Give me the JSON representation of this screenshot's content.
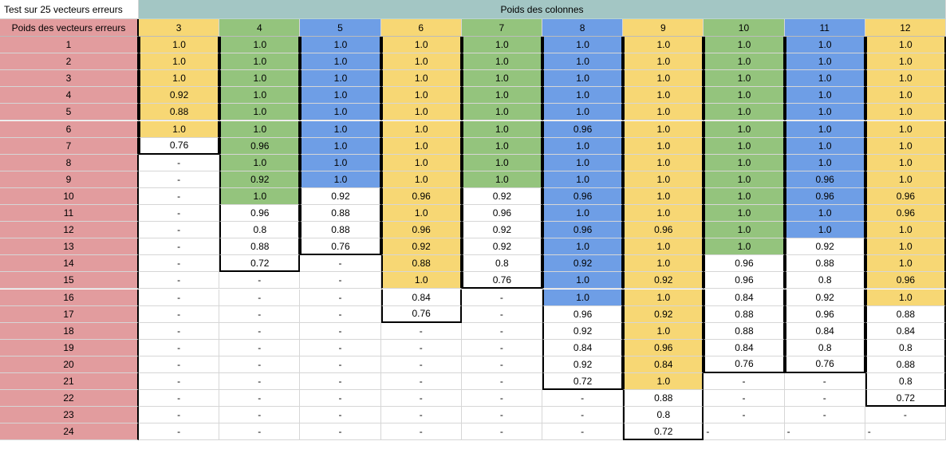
{
  "sheet": {
    "title": "Test sur 25 vecteurs erreurs",
    "column_group_label": "Poids des colonnes",
    "row_header_label": "Poids des vecteurs erreurs",
    "colors": {
      "yellow": "#f7d774",
      "green": "#94c47d",
      "blue": "#6e9ee6",
      "rowlabel": "#e29c9e",
      "band": "#a3c6c4"
    },
    "columns": [
      {
        "label": "3",
        "color": "yellow",
        "colored_rows": 6,
        "box_rows": 7,
        "values": [
          "1.0",
          "1.0",
          "1.0",
          "0.92",
          "0.88",
          "1.0",
          "0.76",
          "-",
          "-",
          "-",
          "-",
          "-",
          "-",
          "-",
          "-",
          "-",
          "-",
          "-",
          "-",
          "-",
          "-",
          "-",
          "-",
          "-"
        ]
      },
      {
        "label": "4",
        "color": "green",
        "colored_rows": 10,
        "box_rows": 14,
        "values": [
          "1.0",
          "1.0",
          "1.0",
          "1.0",
          "1.0",
          "1.0",
          "0.96",
          "1.0",
          "0.92",
          "1.0",
          "0.96",
          "0.8",
          "0.88",
          "0.72",
          "-",
          "-",
          "-",
          "-",
          "-",
          "-",
          "-",
          "-",
          "-",
          "-"
        ]
      },
      {
        "label": "5",
        "color": "blue",
        "colored_rows": 9,
        "box_rows": 13,
        "values": [
          "1.0",
          "1.0",
          "1.0",
          "1.0",
          "1.0",
          "1.0",
          "1.0",
          "1.0",
          "1.0",
          "0.92",
          "0.88",
          "0.88",
          "0.76",
          "-",
          "-",
          "-",
          "-",
          "-",
          "-",
          "-",
          "-",
          "-",
          "-",
          "-"
        ]
      },
      {
        "label": "6",
        "color": "yellow",
        "colored_rows": 15,
        "box_rows": 17,
        "values": [
          "1.0",
          "1.0",
          "1.0",
          "1.0",
          "1.0",
          "1.0",
          "1.0",
          "1.0",
          "1.0",
          "0.96",
          "1.0",
          "0.96",
          "0.92",
          "0.88",
          "1.0",
          "0.84",
          "0.76",
          "-",
          "-",
          "-",
          "-",
          "-",
          "-",
          "-"
        ]
      },
      {
        "label": "7",
        "color": "green",
        "colored_rows": 9,
        "box_rows": 15,
        "values": [
          "1.0",
          "1.0",
          "1.0",
          "1.0",
          "1.0",
          "1.0",
          "1.0",
          "1.0",
          "1.0",
          "0.92",
          "0.96",
          "0.92",
          "0.92",
          "0.8",
          "0.76",
          "-",
          "-",
          "-",
          "-",
          "-",
          "-",
          "-",
          "-",
          "-"
        ]
      },
      {
        "label": "8",
        "color": "blue",
        "colored_rows": 16,
        "box_rows": 21,
        "values": [
          "1.0",
          "1.0",
          "1.0",
          "1.0",
          "1.0",
          "0.96",
          "1.0",
          "1.0",
          "1.0",
          "0.96",
          "1.0",
          "0.96",
          "1.0",
          "0.92",
          "1.0",
          "1.0",
          "0.96",
          "0.92",
          "0.84",
          "0.92",
          "0.72",
          "-",
          "-",
          "-"
        ]
      },
      {
        "label": "9",
        "color": "yellow",
        "colored_rows": 21,
        "box_rows": 24,
        "values": [
          "1.0",
          "1.0",
          "1.0",
          "1.0",
          "1.0",
          "1.0",
          "1.0",
          "1.0",
          "1.0",
          "1.0",
          "1.0",
          "0.96",
          "1.0",
          "1.0",
          "0.92",
          "1.0",
          "0.92",
          "1.0",
          "0.96",
          "0.84",
          "1.0",
          "0.88",
          "0.8",
          "0.72"
        ]
      },
      {
        "label": "10",
        "color": "green",
        "colored_rows": 13,
        "box_rows": 20,
        "values": [
          "1.0",
          "1.0",
          "1.0",
          "1.0",
          "1.0",
          "1.0",
          "1.0",
          "1.0",
          "1.0",
          "1.0",
          "1.0",
          "1.0",
          "1.0",
          "0.96",
          "0.96",
          "0.84",
          "0.88",
          "0.88",
          "0.84",
          "0.76",
          "-",
          "-",
          "-",
          "-"
        ]
      },
      {
        "label": "11",
        "color": "blue",
        "colored_rows": 12,
        "box_rows": 20,
        "values": [
          "1.0",
          "1.0",
          "1.0",
          "1.0",
          "1.0",
          "1.0",
          "1.0",
          "1.0",
          "0.96",
          "0.96",
          "1.0",
          "1.0",
          "0.92",
          "0.88",
          "0.8",
          "0.92",
          "0.96",
          "0.84",
          "0.8",
          "0.76",
          "-",
          "-",
          "-",
          "-"
        ]
      },
      {
        "label": "12",
        "color": "yellow",
        "colored_rows": 16,
        "box_rows": 22,
        "values": [
          "1.0",
          "1.0",
          "1.0",
          "1.0",
          "1.0",
          "1.0",
          "1.0",
          "1.0",
          "1.0",
          "0.96",
          "0.96",
          "1.0",
          "1.0",
          "1.0",
          "0.96",
          "1.0",
          "0.88",
          "0.84",
          "0.8",
          "0.88",
          "0.8",
          "0.72",
          "-",
          "-"
        ]
      }
    ],
    "rows": [
      "1",
      "2",
      "3",
      "4",
      "5",
      "6",
      "7",
      "8",
      "9",
      "10",
      "11",
      "12",
      "13",
      "14",
      "15",
      "16",
      "17",
      "18",
      "19",
      "20",
      "21",
      "22",
      "23",
      "24"
    ]
  }
}
